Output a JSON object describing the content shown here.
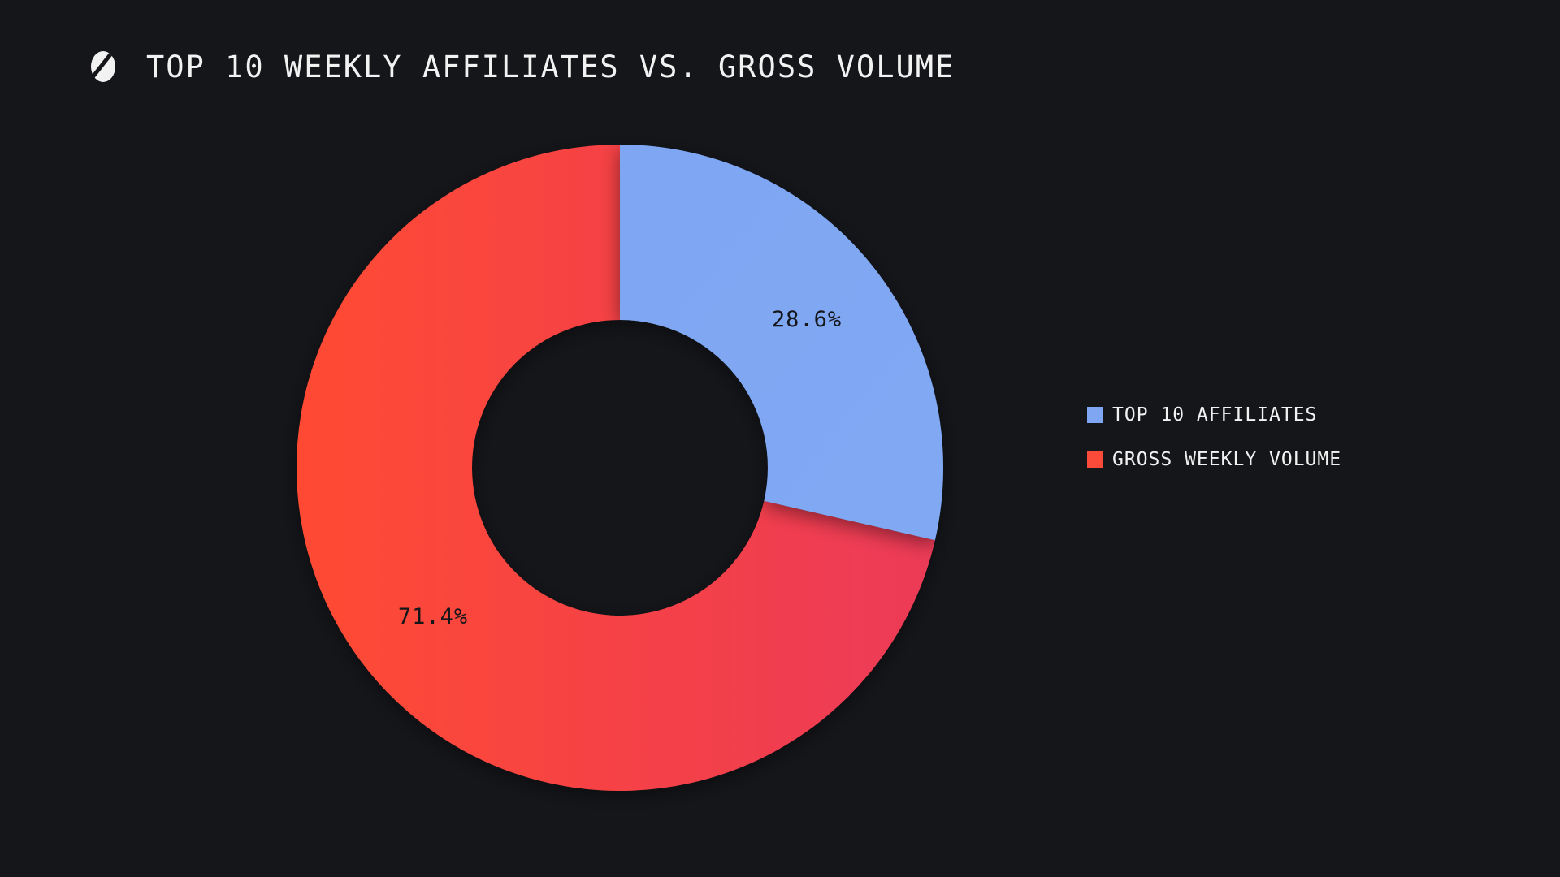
{
  "chart_data": {
    "type": "pie",
    "title": "TOP 10 WEEKLY AFFILIATES VS. GROSS VOLUME",
    "donut": true,
    "categories": [
      "TOP 10 AFFILIATES",
      "GROSS WEEKLY VOLUME"
    ],
    "values": [
      28.6,
      71.4
    ],
    "labels": [
      "28.6%",
      "71.4%"
    ],
    "colors": [
      "#7ea6f2",
      "#fa4a3a"
    ],
    "legend": {
      "placement": "right",
      "entries": [
        "TOP 10 AFFILIATES",
        "GROSS WEEKLY VOLUME"
      ]
    }
  },
  "icons": {
    "logo": "brand-logo-icon"
  }
}
